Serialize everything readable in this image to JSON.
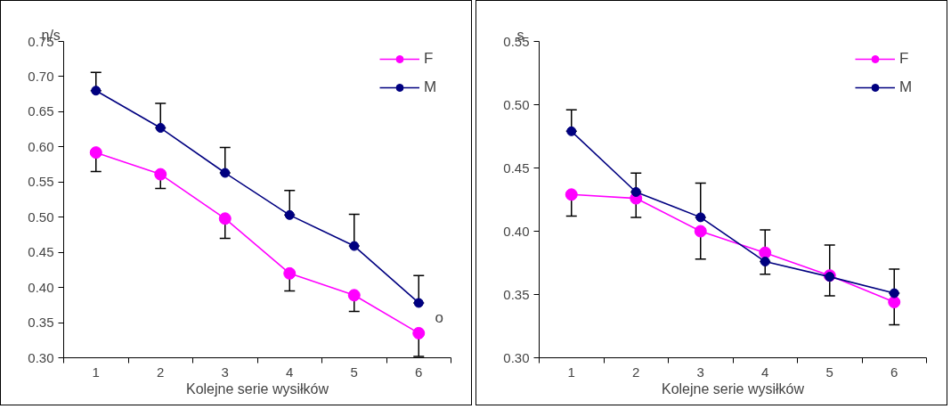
{
  "chart_data": [
    {
      "type": "line",
      "ylabel": "n/s",
      "xlabel": "Kolejne serie wysiłków",
      "categories": [
        "1",
        "2",
        "3",
        "4",
        "5",
        "6"
      ],
      "ylim": [
        0.3,
        0.75
      ],
      "yticks": [
        {
          "value": 0.3,
          "label": "0.30"
        },
        {
          "value": 0.35,
          "label": "0.35"
        },
        {
          "value": 0.4,
          "label": "0.40"
        },
        {
          "value": 0.45,
          "label": "0.45"
        },
        {
          "value": 0.5,
          "label": "0.50"
        },
        {
          "value": 0.55,
          "label": "0.55"
        },
        {
          "value": 0.6,
          "label": "0.60"
        },
        {
          "value": 0.65,
          "label": "0.65"
        },
        {
          "value": 0.7,
          "label": "0.70"
        },
        {
          "value": 0.75,
          "label": "0.75"
        }
      ],
      "legend": "top right",
      "marker": "circle",
      "grid": false,
      "annotations": [
        "o"
      ],
      "series": [
        {
          "name": "F",
          "color": "#ff00ff",
          "values": [
            0.592,
            0.561,
            0.498,
            0.42,
            0.389,
            0.335
          ],
          "errors": [
            [
              0.565,
              0.592
            ],
            [
              0.541,
              0.561
            ],
            [
              0.47,
              0.498
            ],
            [
              0.395,
              0.42
            ],
            [
              0.366,
              0.389
            ],
            [
              0.302,
              0.335
            ]
          ]
        },
        {
          "name": "M",
          "color": "#000080",
          "values": [
            0.68,
            0.627,
            0.563,
            0.503,
            0.459,
            0.378
          ],
          "errors": [
            [
              0.68,
              0.706
            ],
            [
              0.627,
              0.662
            ],
            [
              0.563,
              0.599
            ],
            [
              0.503,
              0.538
            ],
            [
              0.459,
              0.504
            ],
            [
              0.378,
              0.417
            ]
          ]
        }
      ]
    },
    {
      "type": "line",
      "ylabel": "s",
      "xlabel": "Kolejne serie wysiłków",
      "categories": [
        "1",
        "2",
        "3",
        "4",
        "5",
        "6"
      ],
      "ylim": [
        0.3,
        0.55
      ],
      "yticks": [
        {
          "value": 0.3,
          "label": "0.30"
        },
        {
          "value": 0.35,
          "label": "0.35"
        },
        {
          "value": 0.4,
          "label": "0.40"
        },
        {
          "value": 0.45,
          "label": "0.45"
        },
        {
          "value": 0.5,
          "label": "0.50"
        },
        {
          "value": 0.55,
          "label": "0.55"
        }
      ],
      "legend": "top right",
      "marker": "circle",
      "grid": false,
      "series": [
        {
          "name": "F",
          "color": "#ff00ff",
          "values": [
            0.429,
            0.426,
            0.4,
            0.383,
            0.365,
            0.344
          ],
          "errors": [
            [
              0.412,
              0.429
            ],
            [
              0.411,
              0.426
            ],
            [
              0.378,
              0.4
            ],
            [
              0.366,
              0.383
            ],
            [
              0.349,
              0.365
            ],
            [
              0.326,
              0.344
            ]
          ]
        },
        {
          "name": "M",
          "color": "#000080",
          "values": [
            0.479,
            0.431,
            0.411,
            0.376,
            0.364,
            0.351
          ],
          "errors": [
            [
              0.479,
              0.496
            ],
            [
              0.431,
              0.446
            ],
            [
              0.411,
              0.438
            ],
            [
              0.376,
              0.401
            ],
            [
              0.364,
              0.389
            ],
            [
              0.351,
              0.37
            ]
          ]
        }
      ]
    }
  ]
}
